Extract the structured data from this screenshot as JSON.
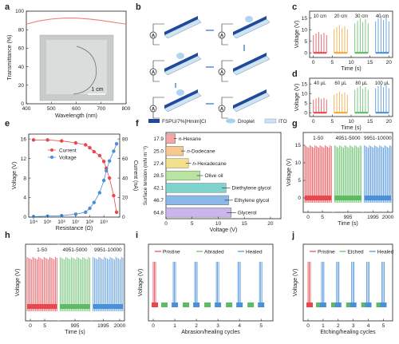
{
  "panel_letters": [
    "a",
    "b",
    "c",
    "d",
    "e",
    "f",
    "g",
    "h",
    "i",
    "j"
  ],
  "colors": {
    "red": "#e8474d",
    "orange": "#f3a73b",
    "green": "#5dbb63",
    "blue": "#4a90d9",
    "pink": "#f28a8a",
    "lightgreen": "#8fd08f",
    "lightblue": "#8ab8e8",
    "violet": "#c9b7ec",
    "teal": "#7fd3cf"
  },
  "panel_b": {
    "legend": [
      "FSPU/7%[Hmim]Cl",
      "Droplet",
      "ITO"
    ],
    "ammeter_symbol": "A"
  },
  "chart_data": [
    {
      "panel": "a",
      "type": "line",
      "xlabel": "Wavelength (nm)",
      "ylabel": "Transmittance (%)",
      "xlim": [
        400,
        800
      ],
      "ylim": [
        0,
        100
      ],
      "xticks": [
        400,
        500,
        600,
        700,
        800
      ],
      "yticks": [
        0,
        20,
        40,
        60,
        80,
        100
      ],
      "x": [
        400,
        450,
        500,
        550,
        600,
        650,
        700,
        750,
        800
      ],
      "y": [
        86,
        89.5,
        91.5,
        92.5,
        92.5,
        91.5,
        90,
        88,
        86
      ],
      "scale_bar": "1 cm"
    },
    {
      "panel": "c",
      "type": "line",
      "xlabel": "Time (s)",
      "ylabel": "Voltage (V)",
      "xlim": [
        -1,
        21
      ],
      "ylim": [
        -2,
        18
      ],
      "xticks": [
        0,
        5,
        10,
        15,
        20
      ],
      "yticks": [
        0,
        5,
        10,
        15
      ],
      "series": [
        {
          "name": "10 cm",
          "color": "#e8474d",
          "x_range": [
            0,
            3.5
          ],
          "peak": 9
        },
        {
          "name": "20 cm",
          "color": "#f3a73b",
          "x_range": [
            5.5,
            9
          ],
          "peak": 12
        },
        {
          "name": "30 cm",
          "color": "#5dbb63",
          "x_range": [
            11,
            14.5
          ],
          "peak": 15
        },
        {
          "name": "40 cm",
          "color": "#4a90d9",
          "x_range": [
            16.5,
            20
          ],
          "peak": 16
        }
      ]
    },
    {
      "panel": "d",
      "type": "line",
      "xlabel": "Time (s)",
      "ylabel": "Voltage (V)",
      "xlim": [
        -1,
        21
      ],
      "ylim": [
        -2,
        18
      ],
      "xticks": [
        0,
        5,
        10,
        15,
        20
      ],
      "yticks": [
        0,
        5,
        10,
        15
      ],
      "series": [
        {
          "name": "40 μL",
          "color": "#e8474d",
          "x_range": [
            0,
            3.5
          ],
          "peak": 8
        },
        {
          "name": "60 μL",
          "color": "#f3a73b",
          "x_range": [
            5.5,
            9
          ],
          "peak": 11
        },
        {
          "name": "80 μL",
          "color": "#5dbb63",
          "x_range": [
            11,
            14.5
          ],
          "peak": 14
        },
        {
          "name": "100 μL",
          "color": "#4a90d9",
          "x_range": [
            16.5,
            20
          ],
          "peak": 15
        }
      ]
    },
    {
      "panel": "e",
      "type": "line",
      "xlabel": "Resistance (Ω)",
      "ylabel": "Voltage (V)",
      "ylabel_right": "Current (nA)",
      "x_log": true,
      "xtick_labels": [
        "10⁴",
        "10⁵",
        "10⁶",
        "10⁷",
        "10⁸",
        "10⁹"
      ],
      "yticks": [
        0,
        4,
        8,
        12,
        16
      ],
      "yticks_right": [
        0,
        20,
        40,
        60,
        80
      ],
      "ylim": [
        0,
        17
      ],
      "ylim_right": [
        0,
        85
      ],
      "x": [
        10000.0,
        100000.0,
        1000000.0,
        10000000.0,
        50000000.0,
        100000000.0,
        200000000.0,
        500000000.0,
        1000000000.0,
        1500000000.0,
        2500000000.0,
        5000000000.0,
        8000000000.0
      ],
      "series": [
        {
          "name": "Current",
          "color": "#e8474d",
          "axis": "right",
          "values": [
            79,
            79,
            78,
            76,
            74,
            71,
            67,
            63,
            57,
            50,
            40,
            22,
            5
          ]
        },
        {
          "name": "Voltage",
          "color": "#4a90d9",
          "axis": "left",
          "values": [
            0.1,
            0.2,
            0.3,
            0.6,
            1.0,
            1.8,
            3.0,
            5.0,
            7.5,
            9.5,
            11.5,
            13.5,
            15
          ]
        }
      ]
    },
    {
      "panel": "f",
      "type": "bar",
      "orientation": "horizontal",
      "xlabel": "Voltage (V)",
      "ylabel": "Surface tension (mN m⁻¹)",
      "xlim": [
        0,
        22
      ],
      "xticks": [
        0,
        5,
        10,
        15,
        20
      ],
      "categories": [
        "17.9",
        "25.0",
        "27.4",
        "28.5",
        "42.1",
        "46.7",
        "64.8"
      ],
      "labels": [
        "n-Hexane",
        "n-Dodecane",
        "n-Hexadecane",
        "Olive oil",
        "Diethylene glycol",
        "Ethylene glycol",
        "Glycerol"
      ],
      "values": [
        1.8,
        3.3,
        4.3,
        6.5,
        11.5,
        12,
        12.5
      ],
      "errors": [
        0.3,
        0.4,
        0.5,
        0.6,
        0.8,
        0.8,
        0.9
      ],
      "bar_colors": [
        "#f4a6a6",
        "#f7c98f",
        "#f3e08a",
        "#b9e3a1",
        "#7fd3cf",
        "#8ab8e8",
        "#c9b7ec"
      ]
    },
    {
      "panel": "g",
      "type": "line",
      "xlabel": "Time (s)",
      "ylabel": "Voltage (V)",
      "ylim": [
        -2,
        18
      ],
      "yticks": [
        0,
        5,
        10,
        15
      ],
      "xtick_labels": [
        "0",
        "5",
        "995",
        "1995",
        "2000"
      ],
      "segment_labels": [
        "1-50",
        "4951-5000",
        "9951-10000"
      ],
      "segment_colors": [
        "#e8474d",
        "#5dbb63",
        "#4a90d9"
      ],
      "peak": 15
    },
    {
      "panel": "h",
      "type": "line",
      "xlabel": "Time (s)",
      "ylabel": "Voltage (V)",
      "xtick_labels": [
        "0",
        "5",
        "995",
        "1995",
        "2000"
      ],
      "segment_labels": [
        "1-50",
        "4951-5000",
        "9951-10000"
      ],
      "segment_colors": [
        "#e8474d",
        "#5dbb63",
        "#4a90d9"
      ],
      "peak": 15
    },
    {
      "panel": "i",
      "type": "line",
      "xlabel": "Abrasion/healing cycles",
      "ylabel": "Voltage (V)",
      "xticks": [
        0,
        1,
        2,
        3,
        4,
        5
      ],
      "legend": [
        "Pristine",
        "Abraded",
        "Healed"
      ],
      "legend_colors": [
        "#e8474d",
        "#5dbb63",
        "#4a90d9"
      ],
      "peaks": {
        "Pristine": 15,
        "Abraded": 1.5,
        "Healed": 15
      }
    },
    {
      "panel": "j",
      "type": "line",
      "xlabel": "Etching/healing cycles",
      "ylabel": "Voltage (V)",
      "xticks": [
        0,
        1,
        2,
        3,
        4,
        5
      ],
      "legend": [
        "Pristine",
        "Etched",
        "Healed"
      ],
      "legend_colors": [
        "#e8474d",
        "#5dbb63",
        "#4a90d9"
      ],
      "peaks": {
        "Pristine": 15,
        "Etched": 1.5,
        "Healed": 15
      }
    }
  ]
}
